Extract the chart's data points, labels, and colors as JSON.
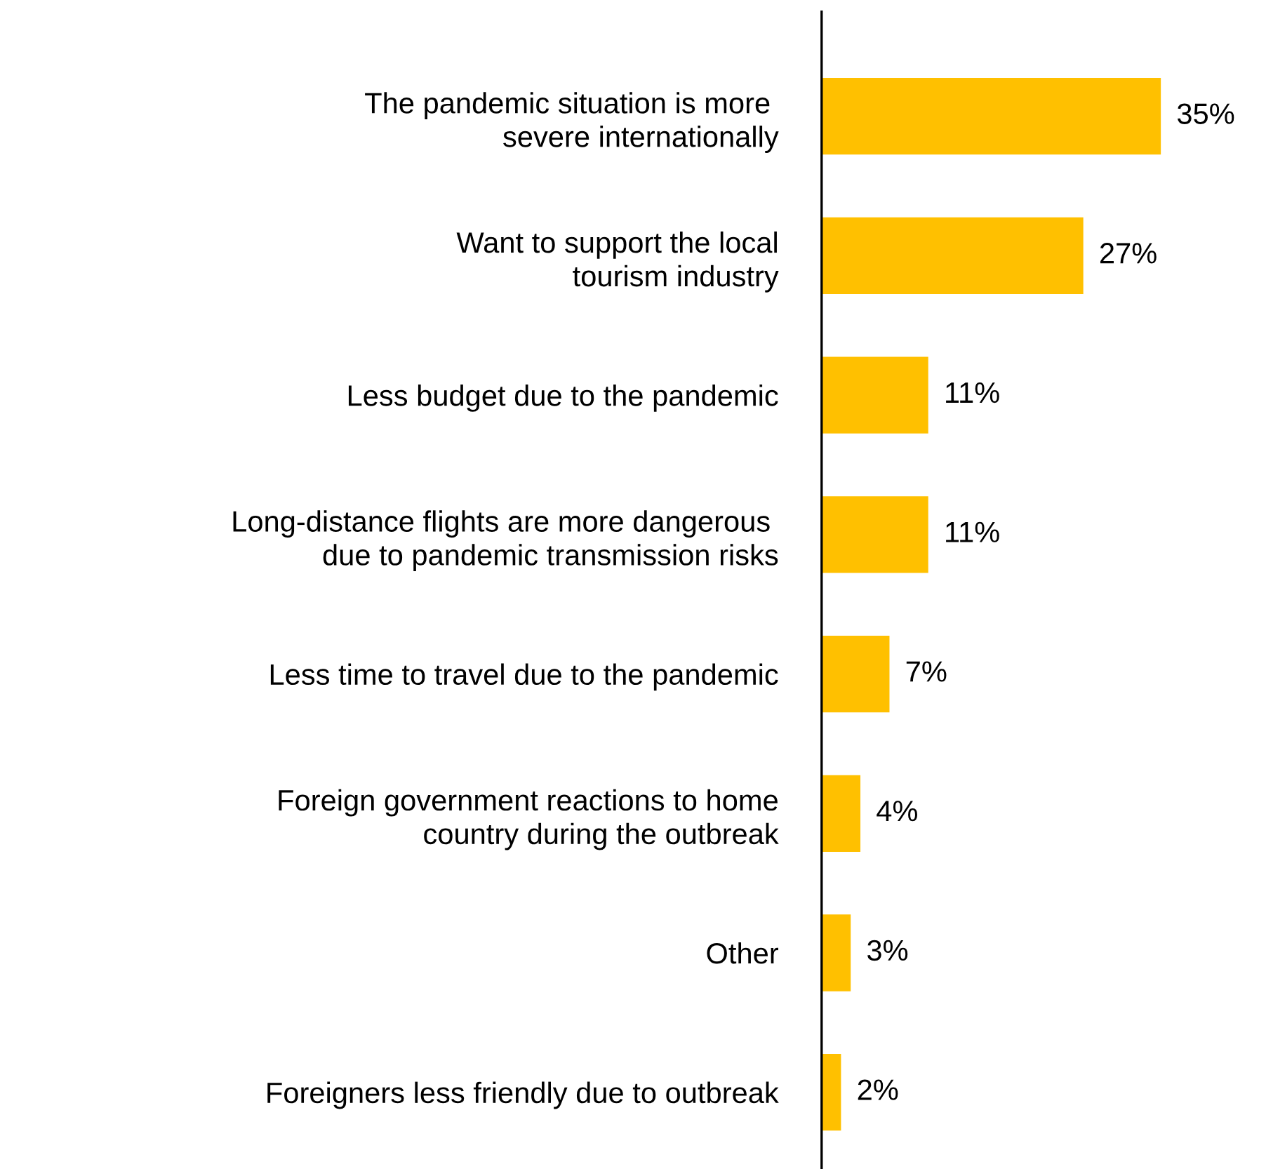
{
  "chart_data": {
    "type": "bar",
    "orientation": "horizontal",
    "categories": [
      "The pandemic situation is more \nsevere internationally",
      "Want to support the local\ntourism industry",
      "Less budget due to the pandemic",
      "Long-distance flights are more dangerous \ndue to pandemic transmission risks",
      "Less time to travel due to the pandemic",
      "Foreign government reactions to home\ncountry during the outbreak",
      "Other",
      "Foreigners less friendly due to outbreak"
    ],
    "values": [
      35,
      27,
      11,
      11,
      7,
      4,
      3,
      2
    ],
    "value_labels": [
      "35%",
      "27%",
      "11%",
      "11%",
      "7%",
      "4%",
      "3%",
      "2%"
    ],
    "color": "#ffc000",
    "grid": false,
    "legend": false
  }
}
